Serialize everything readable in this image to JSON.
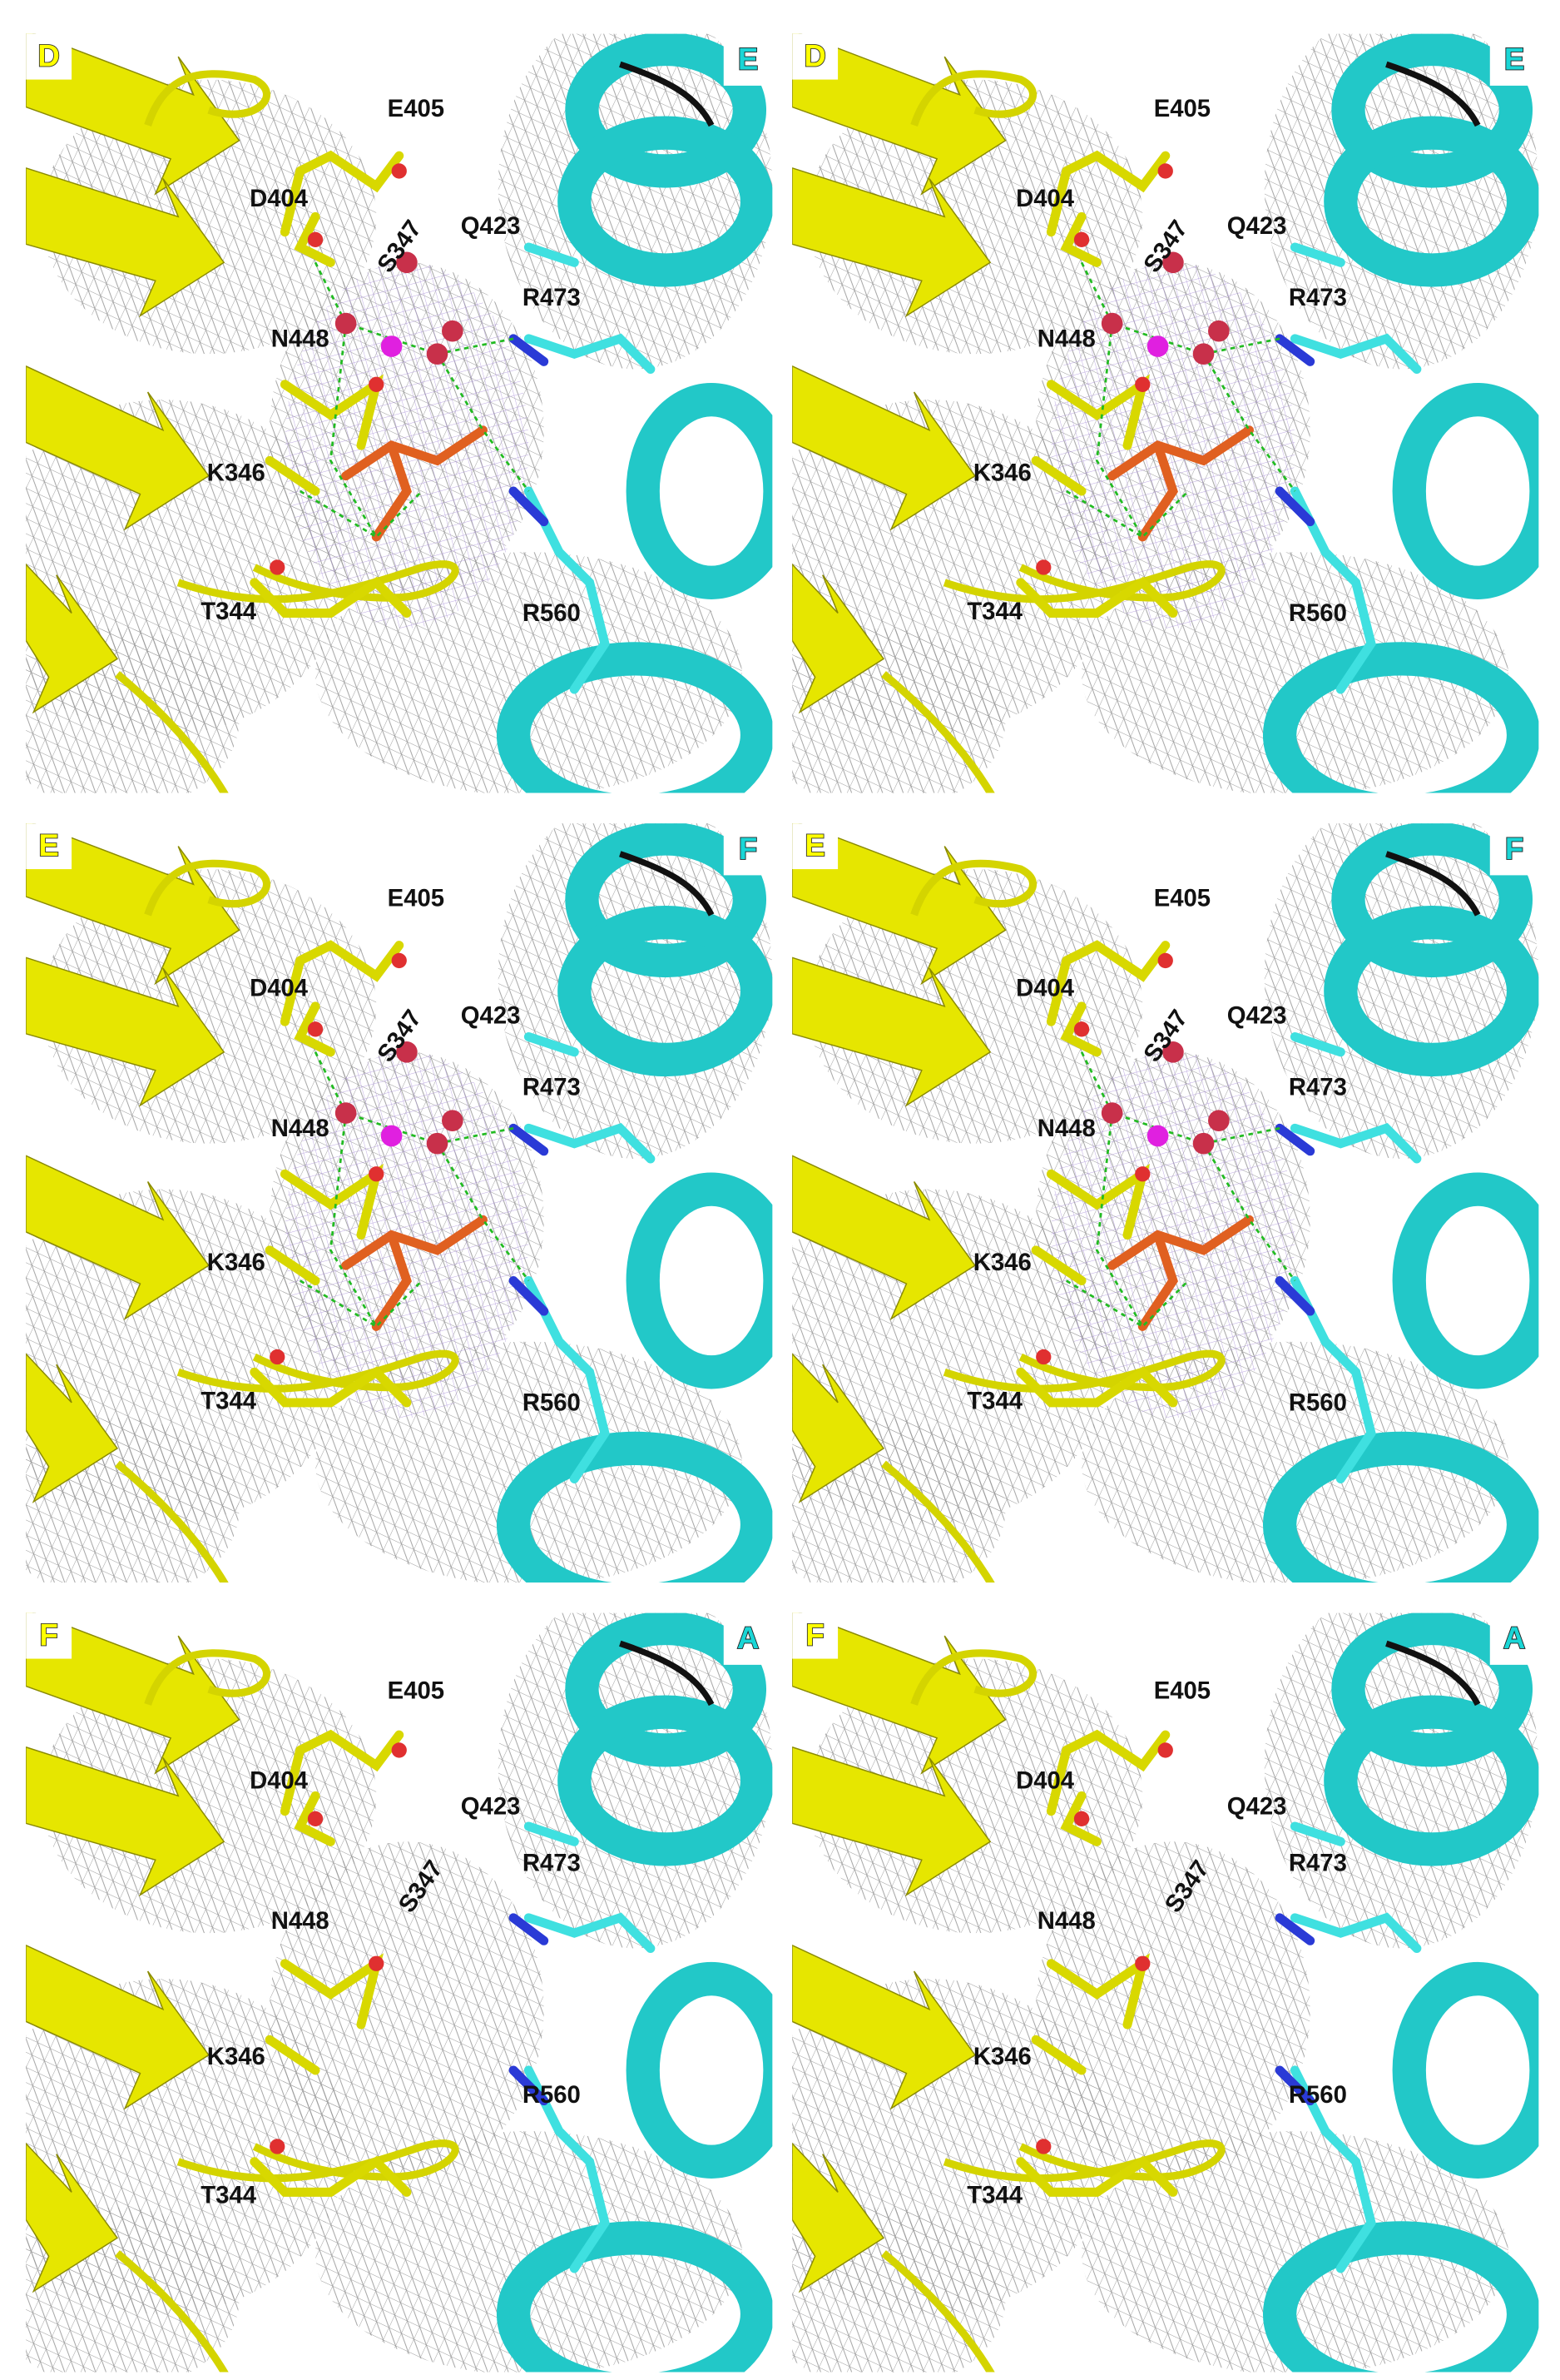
{
  "panels": [
    {
      "chains": [
        "D",
        "E"
      ],
      "residues": [
        "E405",
        "D404",
        "S347",
        "Q423",
        "R473",
        "N448",
        "K346",
        "T344",
        "R560"
      ]
    },
    {
      "chains": [
        "D",
        "E"
      ],
      "residues": [
        "E405",
        "D404",
        "S347",
        "Q423",
        "R473",
        "N448",
        "K346",
        "T344",
        "R560"
      ]
    },
    {
      "chains": [
        "E",
        "F"
      ],
      "residues": [
        "E405",
        "D404",
        "S347",
        "Q423",
        "R473",
        "N448",
        "K346",
        "T344",
        "R560"
      ]
    },
    {
      "chains": [
        "E",
        "F"
      ],
      "residues": [
        "E405",
        "D404",
        "S347",
        "Q423",
        "R473",
        "N448",
        "K346",
        "T344",
        "R560"
      ]
    },
    {
      "chains": [
        "F",
        "A"
      ],
      "residues": [
        "E405",
        "D404",
        "Q423",
        "R473",
        "S347",
        "N448",
        "K346",
        "R560",
        "T344"
      ]
    },
    {
      "chains": [
        "F",
        "A"
      ],
      "residues": [
        "E405",
        "D404",
        "Q423",
        "R473",
        "S347",
        "N448",
        "K346",
        "R560",
        "T344"
      ]
    }
  ]
}
